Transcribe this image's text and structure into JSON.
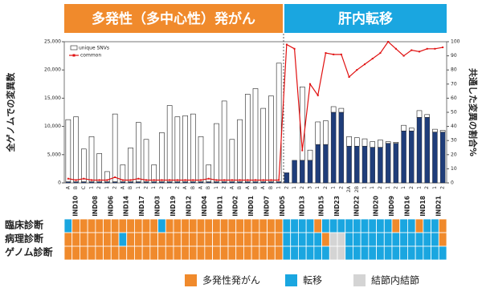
{
  "chart_data": {
    "type": "bar",
    "sections": [
      {
        "title": "多発性（多中心性）発がん",
        "color": "#f08a2c"
      },
      {
        "title": "肝内転移",
        "color": "#1aa6e0"
      }
    ],
    "ylabel": "全ゲノムでの変異数",
    "y2label": "共通した変異の割合%",
    "groups": [
      {
        "label": "IND10",
        "samples": [
          "A",
          "B",
          "C"
        ]
      },
      {
        "label": "IND08",
        "samples": [
          "1",
          "2"
        ]
      },
      {
        "label": "IND06",
        "samples": [
          "1",
          "2"
        ]
      },
      {
        "label": "IND14",
        "samples": [
          "A",
          "B"
        ]
      },
      {
        "label": "IND17",
        "samples": [
          "1",
          "2"
        ]
      },
      {
        "label": "IND03",
        "samples": [
          "1",
          "2"
        ]
      },
      {
        "label": "IND19",
        "samples": [
          "1",
          "2"
        ]
      },
      {
        "label": "IND12",
        "samples": [
          "A",
          "B"
        ]
      },
      {
        "label": "IND04",
        "samples": [
          "A",
          "B"
        ]
      },
      {
        "label": "IND11",
        "samples": [
          "1",
          "2"
        ]
      },
      {
        "label": "IND02",
        "samples": [
          "A",
          "B"
        ]
      },
      {
        "label": "IND01",
        "samples": [
          "A",
          "B"
        ]
      },
      {
        "label": "IND07",
        "samples": [
          "A",
          "B"
        ]
      },
      {
        "label": "IND05",
        "samples": [
          "1",
          "2"
        ]
      },
      {
        "label": "IND13",
        "samples": [
          "1",
          "2",
          "3"
        ]
      },
      {
        "label": "IND15",
        "samples": [
          "1",
          "2"
        ]
      },
      {
        "label": "IND23",
        "samples": [
          "1",
          "2"
        ]
      },
      {
        "label": "IND22",
        "samples": [
          "2A",
          "2B",
          "1"
        ]
      },
      {
        "label": "IND20",
        "samples": [
          "1",
          "2"
        ]
      },
      {
        "label": "IND09",
        "samples": [
          "1",
          "2"
        ]
      },
      {
        "label": "IND16",
        "samples": [
          "1",
          "2"
        ]
      },
      {
        "label": "IND18",
        "samples": [
          "1",
          "2"
        ]
      },
      {
        "label": "IND21",
        "samples": [
          "1",
          "2"
        ]
      }
    ],
    "ylim": [
      0,
      25000
    ],
    "yticks": [
      0,
      {
        "value": 5000,
        "label": "5,000"
      },
      {
        "value": 10000,
        "label": "10,000"
      },
      {
        "value": 15000,
        "label": "15,000"
      },
      {
        "value": 20000,
        "label": "20,000"
      },
      {
        "value": 25000,
        "label": "25,000"
      }
    ],
    "y2lim": [
      0,
      100
    ],
    "y2ticks": [
      0,
      10,
      20,
      30,
      40,
      50,
      60,
      70,
      80,
      90,
      100
    ],
    "common_counts": {
      "color": "#1f3d7a",
      "values": [
        200,
        200,
        200,
        200,
        200,
        200,
        200,
        200,
        200,
        200,
        200,
        200,
        200,
        200,
        200,
        200,
        200,
        200,
        200,
        200,
        200,
        200,
        200,
        200,
        200,
        200,
        200,
        200,
        1800,
        4000,
        4000,
        4000,
        6800,
        6800,
        12500,
        12500,
        6500,
        6500,
        6500,
        6300,
        6300,
        7000,
        7000,
        9200,
        9200,
        11600,
        11600,
        9000,
        9000
      ]
    },
    "series": [
      {
        "name": "unique SNVs",
        "color": "#ffffff",
        "values": [
          11000,
          11500,
          5800,
          8000,
          5000,
          1800,
          12000,
          3000,
          6000,
          10500,
          7500,
          3000,
          8700,
          13500,
          11500,
          11700,
          12000,
          8000,
          3000,
          10300,
          14300,
          7500,
          11000,
          15500,
          16500,
          13000,
          15200,
          21000,
          0,
          0,
          13000,
          1800,
          4000,
          4200,
          1000,
          700,
          1700,
          1500,
          1300,
          1000,
          1300,
          300,
          200,
          1000,
          500,
          1200,
          500,
          500,
          300
        ]
      },
      {
        "name": "common",
        "color": "#e01010",
        "axis": "y2",
        "values": [
          3,
          2,
          3,
          2,
          2,
          2,
          4,
          2,
          2,
          3,
          2,
          2,
          2,
          2,
          2,
          2,
          2,
          2,
          3,
          2,
          2,
          2,
          2,
          2,
          2,
          2,
          2,
          2,
          98,
          95,
          23,
          70,
          62,
          92,
          91,
          91,
          75,
          80,
          84,
          88,
          92,
          100,
          95,
          90,
          94,
          93,
          95,
          95,
          96
        ]
      }
    ],
    "diagnosis_rows": [
      {
        "label": "臨床診断",
        "cells": [
          1,
          0,
          0,
          0,
          0,
          0,
          0,
          0,
          0,
          0,
          0,
          0,
          1,
          0,
          0,
          0,
          0,
          0,
          0,
          0,
          0,
          0,
          0,
          0,
          0,
          0,
          0,
          0,
          1,
          1,
          1,
          1,
          0,
          1,
          1,
          1,
          1,
          1,
          1,
          1,
          1,
          1,
          0,
          1,
          1,
          0,
          1,
          1,
          0
        ]
      },
      {
        "label": "病理診断",
        "cells": [
          0,
          0,
          0,
          0,
          0,
          0,
          0,
          1,
          0,
          0,
          0,
          0,
          0,
          0,
          0,
          0,
          0,
          0,
          0,
          0,
          0,
          0,
          0,
          0,
          0,
          0,
          0,
          0,
          1,
          1,
          1,
          1,
          1,
          0,
          2,
          2,
          1,
          1,
          1,
          1,
          1,
          1,
          1,
          1,
          1,
          1,
          1,
          1,
          0
        ]
      },
      {
        "label": "ゲノム診断",
        "cells": [
          0,
          0,
          0,
          0,
          0,
          0,
          0,
          0,
          0,
          0,
          0,
          0,
          0,
          0,
          0,
          0,
          0,
          0,
          0,
          0,
          0,
          0,
          0,
          0,
          0,
          0,
          0,
          0,
          1,
          1,
          1,
          1,
          1,
          1,
          2,
          2,
          1,
          1,
          1,
          1,
          1,
          1,
          1,
          1,
          1,
          1,
          1,
          1,
          1
        ]
      }
    ],
    "cell_legend": [
      {
        "label": "多発性発がん",
        "color": "#f08a2c"
      },
      {
        "label": "転移",
        "color": "#1aa6e0"
      },
      {
        "label": "結節内結節",
        "color": "#d4d4d4"
      }
    ]
  }
}
